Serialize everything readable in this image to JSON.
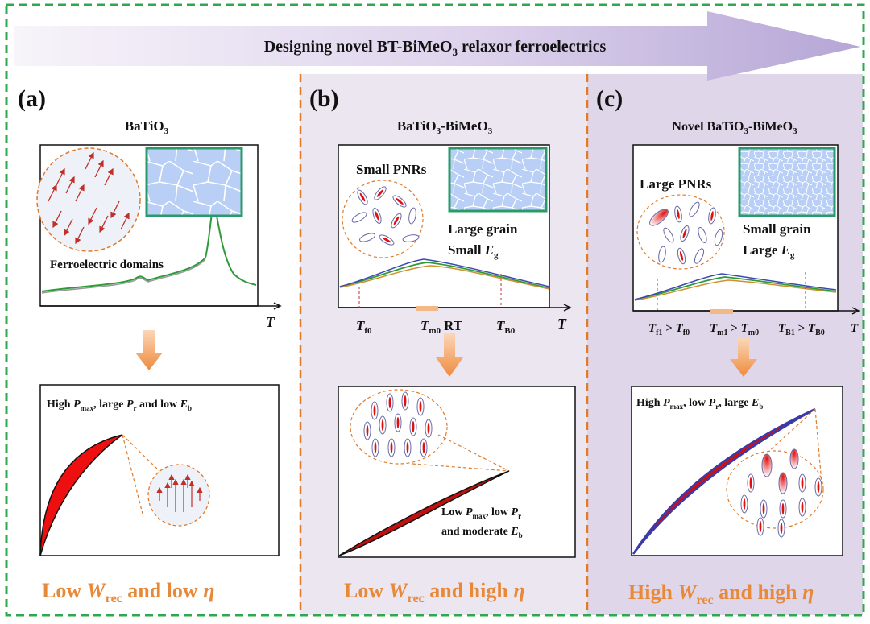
{
  "banner": {
    "title_pre": "Designing novel BT-BiMeO",
    "title_sub": "3",
    "title_post": " relaxor ferroelectrics"
  },
  "panels": [
    {
      "letter": "(a)",
      "material": {
        "pre": "BaTiO",
        "sub": "3",
        "post": ""
      },
      "inset_label": "Ferroelectric domains",
      "axis_t": "T",
      "loop_text": {
        "l1": "High ",
        "pmax": "P",
        "pmax_sub": "max",
        "c1": ", large ",
        "pr": "P",
        "pr_sub": "r",
        "c2": " and low ",
        "eb": "E",
        "eb_sub": "b"
      },
      "result": {
        "pre": "Low ",
        "w": "W",
        "w_sub": "rec",
        "mid": " and low ",
        "eta": "η"
      }
    },
    {
      "letter": "(b)",
      "material": {
        "pre": "BaTiO",
        "sub": "3",
        "post": "-BiMeO",
        "sub2": "3"
      },
      "pnr_label": "Small PNRs",
      "grain_label_1": "Large grain",
      "grain_label_2_pre": "Small ",
      "grain_label_2_e": "E",
      "grain_label_2_sub": "g",
      "ticks": {
        "tf": "T",
        "tf_sub": "f0",
        "tm": "T",
        "tm_sub": "m0",
        "rt": "RT",
        "tb": "T",
        "tb_sub": "B0",
        "t": "T"
      },
      "loop_text": {
        "l1_pre": "Low ",
        "pmax": "P",
        "pmax_sub": "max",
        "l1_mid": ", low ",
        "pr": "P",
        "pr_sub": "r",
        "l2_pre": "and moderate ",
        "eb": "E",
        "eb_sub": "b"
      },
      "result": {
        "pre": "Low ",
        "w": "W",
        "w_sub": "rec",
        "mid": " and high ",
        "eta": "η"
      }
    },
    {
      "letter": "(c)",
      "material": {
        "pre": "Novel BaTiO",
        "sub": "3",
        "post": "-BiMeO",
        "sub2": "3"
      },
      "pnr_label": "Large PNRs",
      "grain_label_1": "Small grain",
      "grain_label_2_pre": "Large ",
      "grain_label_2_e": "E",
      "grain_label_2_sub": "g",
      "ticks": {
        "tf1": "T",
        "tf1_sub": "f1",
        "gt1": " > ",
        "tf0": "T",
        "tf0_sub": "f0",
        "tm1": "T",
        "tm1_sub": "m1",
        "gt2": " > ",
        "tm0": "T",
        "tm0_sub": "m0",
        "tb1": "T",
        "tb1_sub": "B1",
        "gt3": " > ",
        "tb0": "T",
        "tb0_sub": "B0",
        "t": "T"
      },
      "loop_text": {
        "l1": "High ",
        "pmax": "P",
        "pmax_sub": "max",
        "c1": ", low ",
        "pr": "P",
        "pr_sub": "r",
        "c2": ", large ",
        "eb": "E",
        "eb_sub": "b"
      },
      "result": {
        "pre": "High ",
        "w": "W",
        "w_sub": "rec",
        "mid": " and high ",
        "eta": "η"
      }
    }
  ],
  "colors": {
    "frame": "#2fa84f",
    "divider": "#e07b2a",
    "result": "#e8893a",
    "arrow": "#f0a060",
    "loop": "#e01010",
    "domain_arrow": "#c0302a",
    "grain": "#8fb4ee",
    "grain_border": "#2a9a6a"
  }
}
